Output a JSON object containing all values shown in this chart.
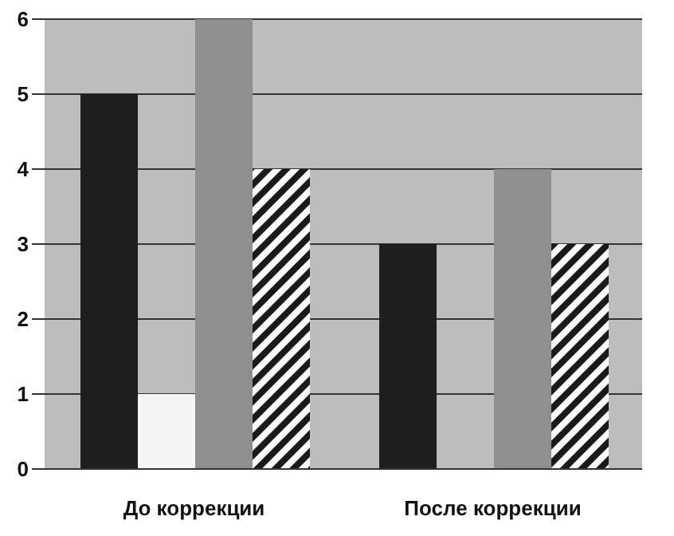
{
  "chart_data": {
    "type": "bar",
    "categories": [
      "До коррекции",
      "После коррекции"
    ],
    "series": [
      {
        "color": "#1e1e1e",
        "values": [
          5,
          3
        ]
      },
      {
        "color": "#f4f4f4",
        "values": [
          1,
          0
        ]
      },
      {
        "color": "#8f8f8f",
        "values": [
          6,
          4
        ]
      },
      {
        "color": "#1a1a1a",
        "values": [
          4,
          3
        ]
      }
    ],
    "ylim": [
      0,
      6
    ],
    "yticks": [
      0,
      1,
      2,
      3,
      4,
      5,
      6
    ],
    "grid": "y",
    "legend": false
  }
}
